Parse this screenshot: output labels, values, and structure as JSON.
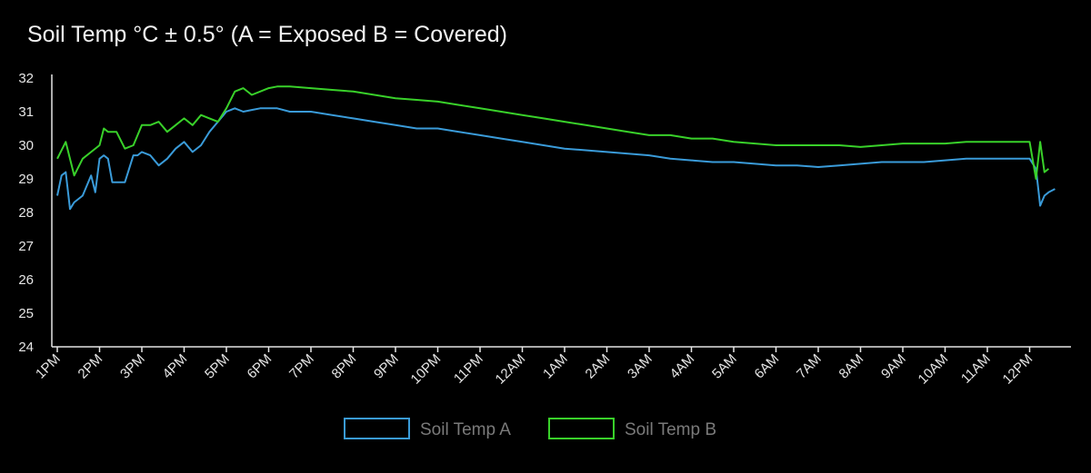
{
  "chart_data": {
    "type": "line",
    "title": "Soil Temp °C ± 0.5° (A = Exposed B = Covered)",
    "xlabel": "",
    "ylabel": "",
    "ylim": [
      24,
      32
    ],
    "y_ticks": [
      "24",
      "25",
      "26",
      "27",
      "28",
      "29",
      "30",
      "31",
      "32"
    ],
    "x_ticks": [
      "1PM",
      "2PM",
      "3PM",
      "4PM",
      "5PM",
      "6PM",
      "7PM",
      "8PM",
      "9PM",
      "10PM",
      "11PM",
      "12AM",
      "1AM",
      "2AM",
      "3AM",
      "4AM",
      "5AM",
      "6AM",
      "7AM",
      "8AM",
      "9AM",
      "10AM",
      "11AM",
      "12PM"
    ],
    "x_range_hours": [
      0,
      23.6
    ],
    "grid": false,
    "legend_position": "bottom-center",
    "series": [
      {
        "name": "Soil Temp A",
        "color": "#3a9bd9",
        "x": [
          0,
          0.1,
          0.2,
          0.3,
          0.4,
          0.6,
          0.8,
          0.9,
          1.0,
          1.1,
          1.2,
          1.3,
          1.4,
          1.6,
          1.8,
          1.9,
          2.0,
          2.2,
          2.4,
          2.6,
          2.8,
          3.0,
          3.2,
          3.4,
          3.6,
          3.8,
          4.0,
          4.2,
          4.4,
          4.6,
          4.8,
          5.0,
          5.2,
          5.5,
          6.0,
          6.5,
          7.0,
          7.5,
          8.0,
          8.5,
          9.0,
          9.5,
          10.0,
          10.5,
          11.0,
          11.5,
          12.0,
          12.5,
          13.0,
          13.5,
          14.0,
          14.5,
          15.0,
          15.5,
          16.0,
          16.5,
          17.0,
          17.5,
          18.0,
          18.5,
          19.0,
          19.5,
          20.0,
          20.5,
          21.0,
          21.5,
          22.0,
          22.5,
          23.0,
          23.15,
          23.25,
          23.35,
          23.45,
          23.6
        ],
        "values": [
          28.5,
          29.1,
          29.2,
          28.1,
          28.3,
          28.5,
          29.1,
          28.6,
          29.6,
          29.7,
          29.6,
          28.9,
          28.9,
          28.9,
          29.7,
          29.7,
          29.8,
          29.7,
          29.4,
          29.6,
          29.9,
          30.1,
          29.8,
          30.0,
          30.4,
          30.7,
          31.0,
          31.1,
          31.0,
          31.05,
          31.1,
          31.1,
          31.1,
          31.0,
          31.0,
          30.9,
          30.8,
          30.7,
          30.6,
          30.5,
          30.5,
          30.4,
          30.3,
          30.2,
          30.1,
          30.0,
          29.9,
          29.85,
          29.8,
          29.75,
          29.7,
          29.6,
          29.55,
          29.5,
          29.5,
          29.45,
          29.4,
          29.4,
          29.35,
          29.4,
          29.45,
          29.5,
          29.5,
          29.5,
          29.55,
          29.6,
          29.6,
          29.6,
          29.6,
          29.3,
          28.2,
          28.5,
          28.6,
          28.7
        ]
      },
      {
        "name": "Soil Temp B",
        "color": "#39d12a",
        "x": [
          0,
          0.2,
          0.4,
          0.6,
          0.8,
          1.0,
          1.1,
          1.2,
          1.4,
          1.6,
          1.8,
          2.0,
          2.2,
          2.4,
          2.6,
          2.8,
          3.0,
          3.2,
          3.4,
          3.6,
          3.8,
          4.0,
          4.2,
          4.4,
          4.6,
          4.8,
          5.0,
          5.2,
          5.5,
          6.0,
          6.5,
          7.0,
          7.5,
          8.0,
          8.5,
          9.0,
          9.5,
          10.0,
          10.5,
          11.0,
          11.5,
          12.0,
          12.5,
          13.0,
          13.5,
          14.0,
          14.5,
          15.0,
          15.5,
          16.0,
          16.5,
          17.0,
          17.5,
          18.0,
          18.5,
          19.0,
          19.5,
          20.0,
          20.5,
          21.0,
          21.5,
          22.0,
          22.5,
          23.0,
          23.15,
          23.25,
          23.35,
          23.45
        ],
        "values": [
          29.6,
          30.1,
          29.1,
          29.6,
          29.8,
          30.0,
          30.5,
          30.4,
          30.4,
          29.9,
          30.0,
          30.6,
          30.6,
          30.7,
          30.4,
          30.6,
          30.8,
          30.6,
          30.9,
          30.8,
          30.7,
          31.1,
          31.6,
          31.7,
          31.5,
          31.6,
          31.7,
          31.75,
          31.75,
          31.7,
          31.65,
          31.6,
          31.5,
          31.4,
          31.35,
          31.3,
          31.2,
          31.1,
          31.0,
          30.9,
          30.8,
          30.7,
          30.6,
          30.5,
          30.4,
          30.3,
          30.3,
          30.2,
          30.2,
          30.1,
          30.05,
          30.0,
          30.0,
          30.0,
          30.0,
          29.95,
          30.0,
          30.05,
          30.05,
          30.05,
          30.1,
          30.1,
          30.1,
          30.1,
          29.0,
          30.1,
          29.2,
          29.3
        ]
      }
    ]
  }
}
